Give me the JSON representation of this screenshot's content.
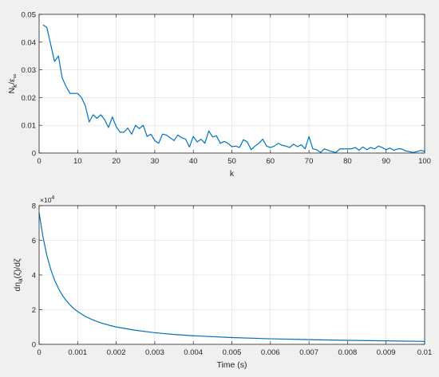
{
  "colors": {
    "figure_background": "#f0f0f0",
    "axes_background": "#ffffff",
    "grid": "#dcdcdc",
    "axis": "#262626",
    "line": "#0072bd"
  },
  "chart_data": [
    {
      "type": "line",
      "title": "",
      "xlabel": "k",
      "ylabel": {
        "main": "N",
        "sub1": "k",
        "sep": "/",
        "sym": "ε",
        "sub2": "∞"
      },
      "xlim": [
        0,
        100
      ],
      "ylim": [
        0,
        0.05
      ],
      "grid": true,
      "xticks": [
        0,
        10,
        20,
        30,
        40,
        50,
        60,
        70,
        80,
        90,
        100
      ],
      "xtick_labels": [
        "0",
        "10",
        "20",
        "30",
        "40",
        "50",
        "60",
        "70",
        "80",
        "90",
        "100"
      ],
      "yticks": [
        0,
        0.01,
        0.02,
        0.03,
        0.04,
        0.05
      ],
      "ytick_labels": [
        "0",
        "0.01",
        "0.02",
        "0.03",
        "0.04",
        "0.05"
      ],
      "series": [
        {
          "x": [
            1,
            2,
            3,
            4,
            5,
            6,
            7,
            8,
            9,
            10,
            11,
            12,
            13,
            14,
            15,
            16,
            17,
            18,
            19,
            20,
            21,
            22,
            23,
            24,
            25,
            26,
            27,
            28,
            29,
            30,
            31,
            32,
            33,
            34,
            35,
            36,
            37,
            38,
            39,
            40,
            41,
            42,
            43,
            44,
            45,
            46,
            47,
            48,
            49,
            50,
            51,
            52,
            53,
            54,
            55,
            56,
            57,
            58,
            59,
            60,
            61,
            62,
            63,
            64,
            65,
            66,
            67,
            68,
            69,
            70,
            71,
            72,
            73,
            74,
            75,
            76,
            77,
            78,
            79,
            80,
            81,
            82,
            83,
            84,
            85,
            86,
            87,
            88,
            89,
            90,
            91,
            92,
            93,
            94,
            95,
            96,
            97,
            98,
            99,
            100
          ],
          "y": [
            0.0462,
            0.0453,
            0.0392,
            0.033,
            0.035,
            0.027,
            0.024,
            0.0215,
            0.0215,
            0.0215,
            0.02,
            0.017,
            0.0112,
            0.0138,
            0.0125,
            0.0138,
            0.012,
            0.0092,
            0.013,
            0.0095,
            0.0075,
            0.0075,
            0.009,
            0.0068,
            0.01,
            0.0088,
            0.01,
            0.006,
            0.0068,
            0.0045,
            0.0035,
            0.0068,
            0.0065,
            0.0055,
            0.0045,
            0.0065,
            0.0055,
            0.005,
            0.0022,
            0.006,
            0.004,
            0.005,
            0.0035,
            0.008,
            0.0058,
            0.0062,
            0.0035,
            0.0042,
            0.0035,
            0.0023,
            0.0025,
            0.002,
            0.0048,
            0.004,
            0.0012,
            0.0025,
            0.0035,
            0.005,
            0.0025,
            0.002,
            0.0025,
            0.0035,
            0.0028,
            0.0025,
            0.002,
            0.0032,
            0.0023,
            0.003,
            0.0015,
            0.006,
            0.0015,
            0.0012,
            0.0002,
            0.0015,
            0.001,
            0.0005,
            0.0002,
            0.0015,
            0.0015,
            0.0015,
            0.0015,
            0.002,
            0.001,
            0.0022,
            0.0012,
            0.002,
            0.0015,
            0.0025,
            0.002,
            0.0012,
            0.0018,
            0.001,
            0.0015,
            0.0015,
            0.0008,
            0.0005,
            0.0002,
            0.0005,
            0.001,
            0.0006
          ]
        }
      ]
    },
    {
      "type": "line",
      "title": "",
      "xlabel": "Time (s)",
      "ylabel": {
        "pre": "d",
        "eta": "η",
        "sub": "a",
        "rest": "(ζ)/dζ"
      },
      "xlim": [
        0,
        0.01
      ],
      "ylim": [
        0,
        80000
      ],
      "y_exponent": {
        "base": "×10",
        "power": "4"
      },
      "grid": true,
      "xticks": [
        0,
        0.001,
        0.002,
        0.003,
        0.004,
        0.005,
        0.006,
        0.007,
        0.008,
        0.009,
        0.01
      ],
      "xtick_labels": [
        "0",
        "0.001",
        "0.002",
        "0.003",
        "0.004",
        "0.005",
        "0.006",
        "0.007",
        "0.008",
        "0.009",
        "0.01"
      ],
      "yticks": [
        0,
        20000,
        40000,
        60000,
        80000
      ],
      "ytick_labels": [
        "0",
        "2",
        "4",
        "6",
        "8"
      ],
      "series": [
        {
          "x": [
            0,
            0.0001,
            0.0002,
            0.0003,
            0.0004,
            0.0005,
            0.0006,
            0.0007,
            0.0008,
            0.0009,
            0.001,
            0.0012,
            0.0014,
            0.0016,
            0.0018,
            0.002,
            0.0025,
            0.003,
            0.0035,
            0.004,
            0.005,
            0.006,
            0.007,
            0.008,
            0.009,
            0.01
          ],
          "y": [
            76000,
            62000,
            51300,
            43300,
            37100,
            32300,
            28400,
            25300,
            22800,
            20600,
            18900,
            16100,
            14000,
            12400,
            11100,
            10000,
            8100,
            6700,
            5700,
            4950,
            3900,
            3200,
            2700,
            2300,
            2000,
            1700
          ]
        }
      ]
    }
  ]
}
